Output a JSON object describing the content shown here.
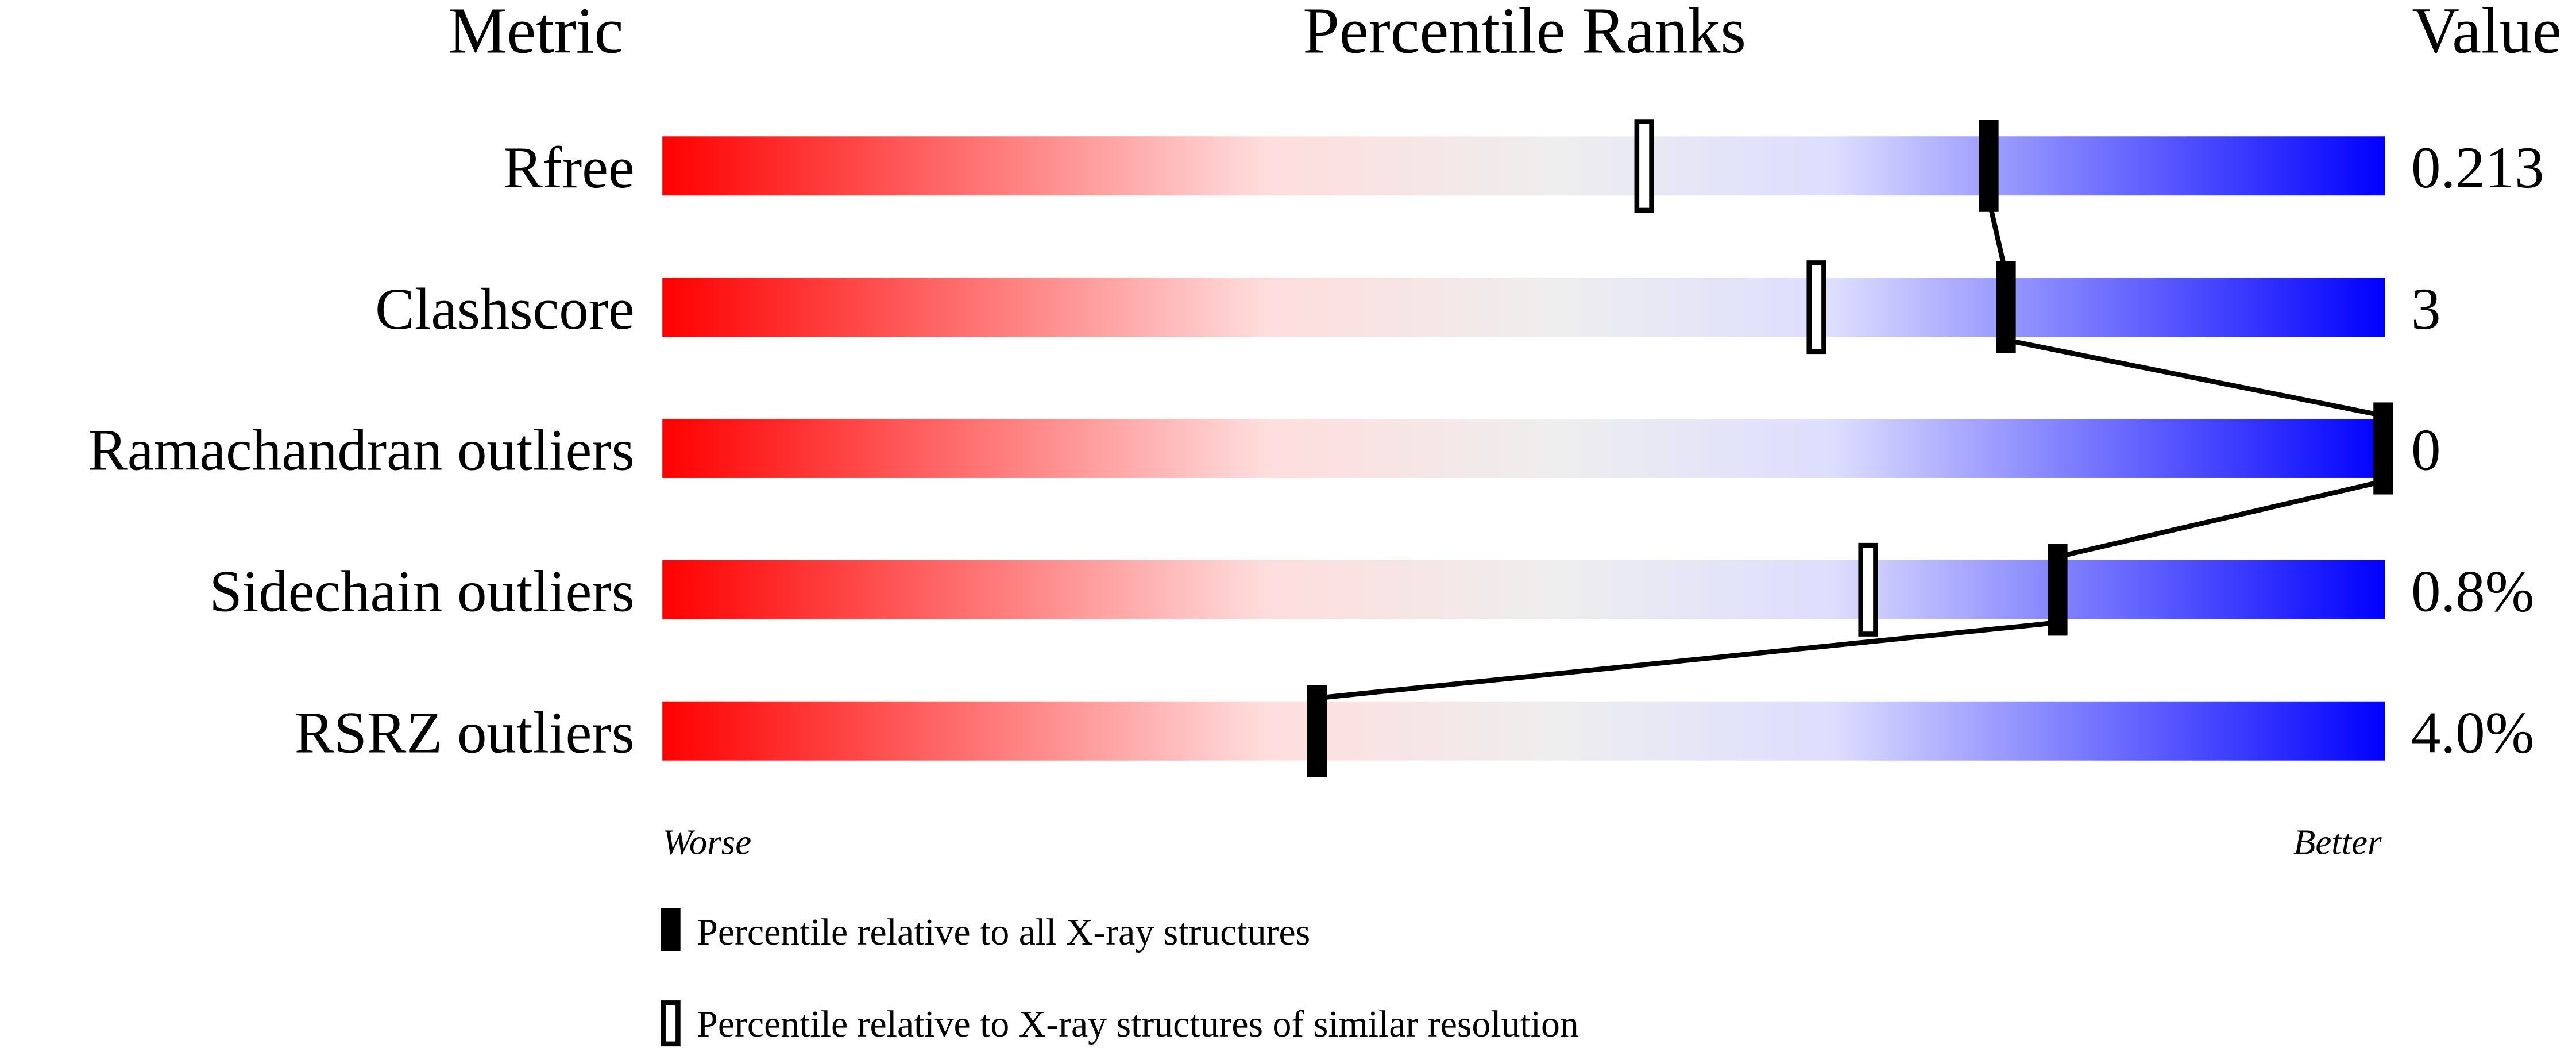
{
  "chart_data": {
    "type": "percentile-bar",
    "headers": {
      "metric": "Metric",
      "ranks": "Percentile Ranks",
      "value": "Value"
    },
    "xlim": [
      0,
      100
    ],
    "gradient_colors": [
      "#ff0000",
      "#ffdddd",
      "#eeeeee",
      "#ddddff",
      "#0000ff"
    ],
    "rows": [
      {
        "metric": "Rfree",
        "value": "0.213",
        "percentile_all": 77,
        "percentile_similar": 57
      },
      {
        "metric": "Clashscore",
        "value": "3",
        "percentile_all": 78,
        "percentile_similar": 67
      },
      {
        "metric": "Ramachandran outliers",
        "value": "0",
        "percentile_all": 100,
        "percentile_similar": null
      },
      {
        "metric": "Sidechain outliers",
        "value": "0.8%",
        "percentile_all": 81,
        "percentile_similar": 70
      },
      {
        "metric": "RSRZ outliers",
        "value": "4.0%",
        "percentile_all": 38,
        "percentile_similar": null
      }
    ],
    "axis_labels": {
      "left": "Worse",
      "right": "Better"
    },
    "legend": {
      "all": "Percentile relative to all X-ray structures",
      "similar": "Percentile relative to X-ray structures of similar resolution"
    }
  }
}
